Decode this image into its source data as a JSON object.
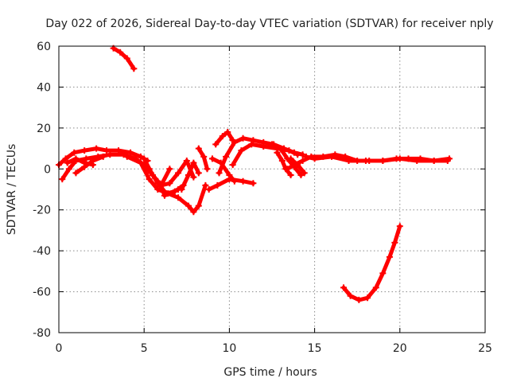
{
  "chart_data": {
    "type": "scatter",
    "title": "Day 022 of 2026, Sidereal Day-to-day VTEC variation (SDTVAR) for receiver nply",
    "xlabel": "GPS time / hours",
    "ylabel": "SDTVAR / TECUs",
    "xlim": [
      0,
      25
    ],
    "ylim": [
      -80,
      60
    ],
    "xticks": [
      "0",
      "5",
      "10",
      "15",
      "20",
      "25"
    ],
    "yticks": [
      "-80",
      "-60",
      "-40",
      "-20",
      "0",
      "20",
      "40",
      "60"
    ],
    "grid": true,
    "color": "#ff0000",
    "series": [
      {
        "name": "arc-1",
        "points": [
          [
            3.2,
            59
          ],
          [
            3.6,
            57
          ],
          [
            4.0,
            54
          ],
          [
            4.4,
            49
          ]
        ]
      },
      {
        "name": "arc-2",
        "points": [
          [
            0.0,
            2
          ],
          [
            0.4,
            5
          ],
          [
            0.9,
            8
          ],
          [
            1.5,
            9
          ],
          [
            2.2,
            10
          ],
          [
            2.8,
            9
          ],
          [
            3.5,
            9
          ],
          [
            4.2,
            8
          ],
          [
            4.8,
            6
          ],
          [
            5.2,
            4
          ]
        ]
      },
      {
        "name": "arc-3",
        "points": [
          [
            0.2,
            -5
          ],
          [
            0.6,
            0
          ],
          [
            1.0,
            4
          ],
          [
            1.6,
            5
          ],
          [
            2.3,
            6
          ],
          [
            3.0,
            7
          ],
          [
            3.8,
            7
          ],
          [
            4.5,
            5
          ],
          [
            5.0,
            2
          ],
          [
            5.4,
            -2
          ],
          [
            5.8,
            -6
          ]
        ]
      },
      {
        "name": "arc-4",
        "points": [
          [
            0.5,
            3
          ],
          [
            1.0,
            5
          ],
          [
            1.5,
            3
          ],
          [
            2.0,
            2
          ]
        ]
      },
      {
        "name": "arc-5",
        "points": [
          [
            1.0,
            -2
          ],
          [
            1.5,
            1
          ],
          [
            2.0,
            4
          ],
          [
            2.6,
            6
          ]
        ]
      },
      {
        "name": "arc-6",
        "points": [
          [
            4.0,
            6
          ],
          [
            4.8,
            3
          ],
          [
            5.3,
            -5
          ],
          [
            5.8,
            -10
          ],
          [
            6.4,
            -12
          ],
          [
            7.0,
            -14
          ],
          [
            7.6,
            -18
          ],
          [
            7.9,
            -21
          ],
          [
            8.2,
            -18
          ],
          [
            8.6,
            -8
          ]
        ]
      },
      {
        "name": "arc-7",
        "points": [
          [
            5.0,
            5
          ],
          [
            5.5,
            -3
          ],
          [
            6.0,
            -8
          ],
          [
            6.5,
            -7
          ],
          [
            7.0,
            -2
          ],
          [
            7.5,
            4
          ],
          [
            7.9,
            -4
          ]
        ]
      },
      {
        "name": "arc-8",
        "points": [
          [
            5.3,
            0
          ],
          [
            5.8,
            -7
          ],
          [
            6.3,
            -12
          ],
          [
            6.8,
            -11
          ],
          [
            7.3,
            -8
          ]
        ]
      },
      {
        "name": "arc-9",
        "points": [
          [
            6.5,
            0
          ],
          [
            6.0,
            -8
          ],
          [
            6.2,
            -13
          ],
          [
            7.0,
            -10
          ]
        ]
      },
      {
        "name": "arc-10",
        "points": [
          [
            7.2,
            -10
          ],
          [
            7.6,
            -3
          ],
          [
            7.9,
            3
          ],
          [
            8.2,
            -2
          ]
        ]
      },
      {
        "name": "arc-11",
        "points": [
          [
            8.2,
            10
          ],
          [
            8.5,
            6
          ],
          [
            8.7,
            0
          ]
        ]
      },
      {
        "name": "arc-12",
        "points": [
          [
            8.8,
            -10
          ],
          [
            9.3,
            -8
          ],
          [
            10.0,
            -5
          ],
          [
            10.8,
            -6
          ],
          [
            11.4,
            -7
          ]
        ]
      },
      {
        "name": "arc-13",
        "points": [
          [
            9.0,
            5
          ],
          [
            9.5,
            3
          ],
          [
            10.0,
            -3
          ],
          [
            10.3,
            -6
          ]
        ]
      },
      {
        "name": "arc-14",
        "points": [
          [
            9.2,
            12
          ],
          [
            9.6,
            16
          ],
          [
            9.9,
            18
          ],
          [
            10.2,
            14
          ]
        ]
      },
      {
        "name": "arc-15",
        "points": [
          [
            9.4,
            -2
          ],
          [
            9.8,
            6
          ],
          [
            10.3,
            13
          ],
          [
            10.8,
            15
          ],
          [
            11.4,
            14
          ],
          [
            12.0,
            13
          ],
          [
            12.6,
            12
          ],
          [
            13.2,
            10
          ],
          [
            13.8,
            8
          ],
          [
            14.3,
            7
          ]
        ]
      },
      {
        "name": "arc-16",
        "points": [
          [
            10.2,
            2
          ],
          [
            10.7,
            9
          ],
          [
            11.3,
            12
          ],
          [
            12.0,
            11
          ],
          [
            12.8,
            10
          ],
          [
            13.5,
            9
          ],
          [
            14.0,
            7
          ]
        ]
      },
      {
        "name": "arc-17",
        "points": [
          [
            12.5,
            12
          ],
          [
            13.0,
            10
          ],
          [
            13.4,
            5
          ],
          [
            13.8,
            1
          ],
          [
            14.2,
            -3
          ]
        ]
      },
      {
        "name": "arc-18",
        "points": [
          [
            12.8,
            8
          ],
          [
            13.1,
            4
          ],
          [
            13.3,
            0
          ],
          [
            13.6,
            -3
          ]
        ]
      },
      {
        "name": "arc-19",
        "points": [
          [
            13.6,
            5
          ],
          [
            14.0,
            2
          ],
          [
            14.4,
            -2
          ]
        ]
      },
      {
        "name": "arc-20",
        "points": [
          [
            13.4,
            0
          ],
          [
            13.8,
            2
          ],
          [
            14.3,
            4
          ],
          [
            14.8,
            6
          ],
          [
            15.5,
            6
          ],
          [
            16.2,
            7
          ],
          [
            16.8,
            6
          ],
          [
            17.5,
            4
          ],
          [
            18.2,
            4
          ],
          [
            19.0,
            4
          ],
          [
            19.8,
            5
          ],
          [
            20.5,
            5
          ],
          [
            21.2,
            5
          ],
          [
            22.0,
            4
          ],
          [
            22.8,
            4
          ]
        ]
      },
      {
        "name": "arc-21",
        "points": [
          [
            14.5,
            6
          ],
          [
            15.0,
            5
          ],
          [
            16.0,
            6
          ],
          [
            17.0,
            4
          ],
          [
            18.0,
            4
          ],
          [
            19.0,
            4
          ],
          [
            20.0,
            5
          ],
          [
            21.0,
            4
          ],
          [
            22.0,
            4
          ],
          [
            22.9,
            5
          ]
        ]
      },
      {
        "name": "arc-22",
        "points": [
          [
            16.7,
            -58
          ],
          [
            17.1,
            -62
          ],
          [
            17.6,
            -64
          ],
          [
            18.1,
            -63
          ],
          [
            18.6,
            -58
          ],
          [
            19.0,
            -51
          ],
          [
            19.4,
            -43
          ],
          [
            19.7,
            -36
          ],
          [
            20.0,
            -28
          ]
        ]
      }
    ]
  }
}
